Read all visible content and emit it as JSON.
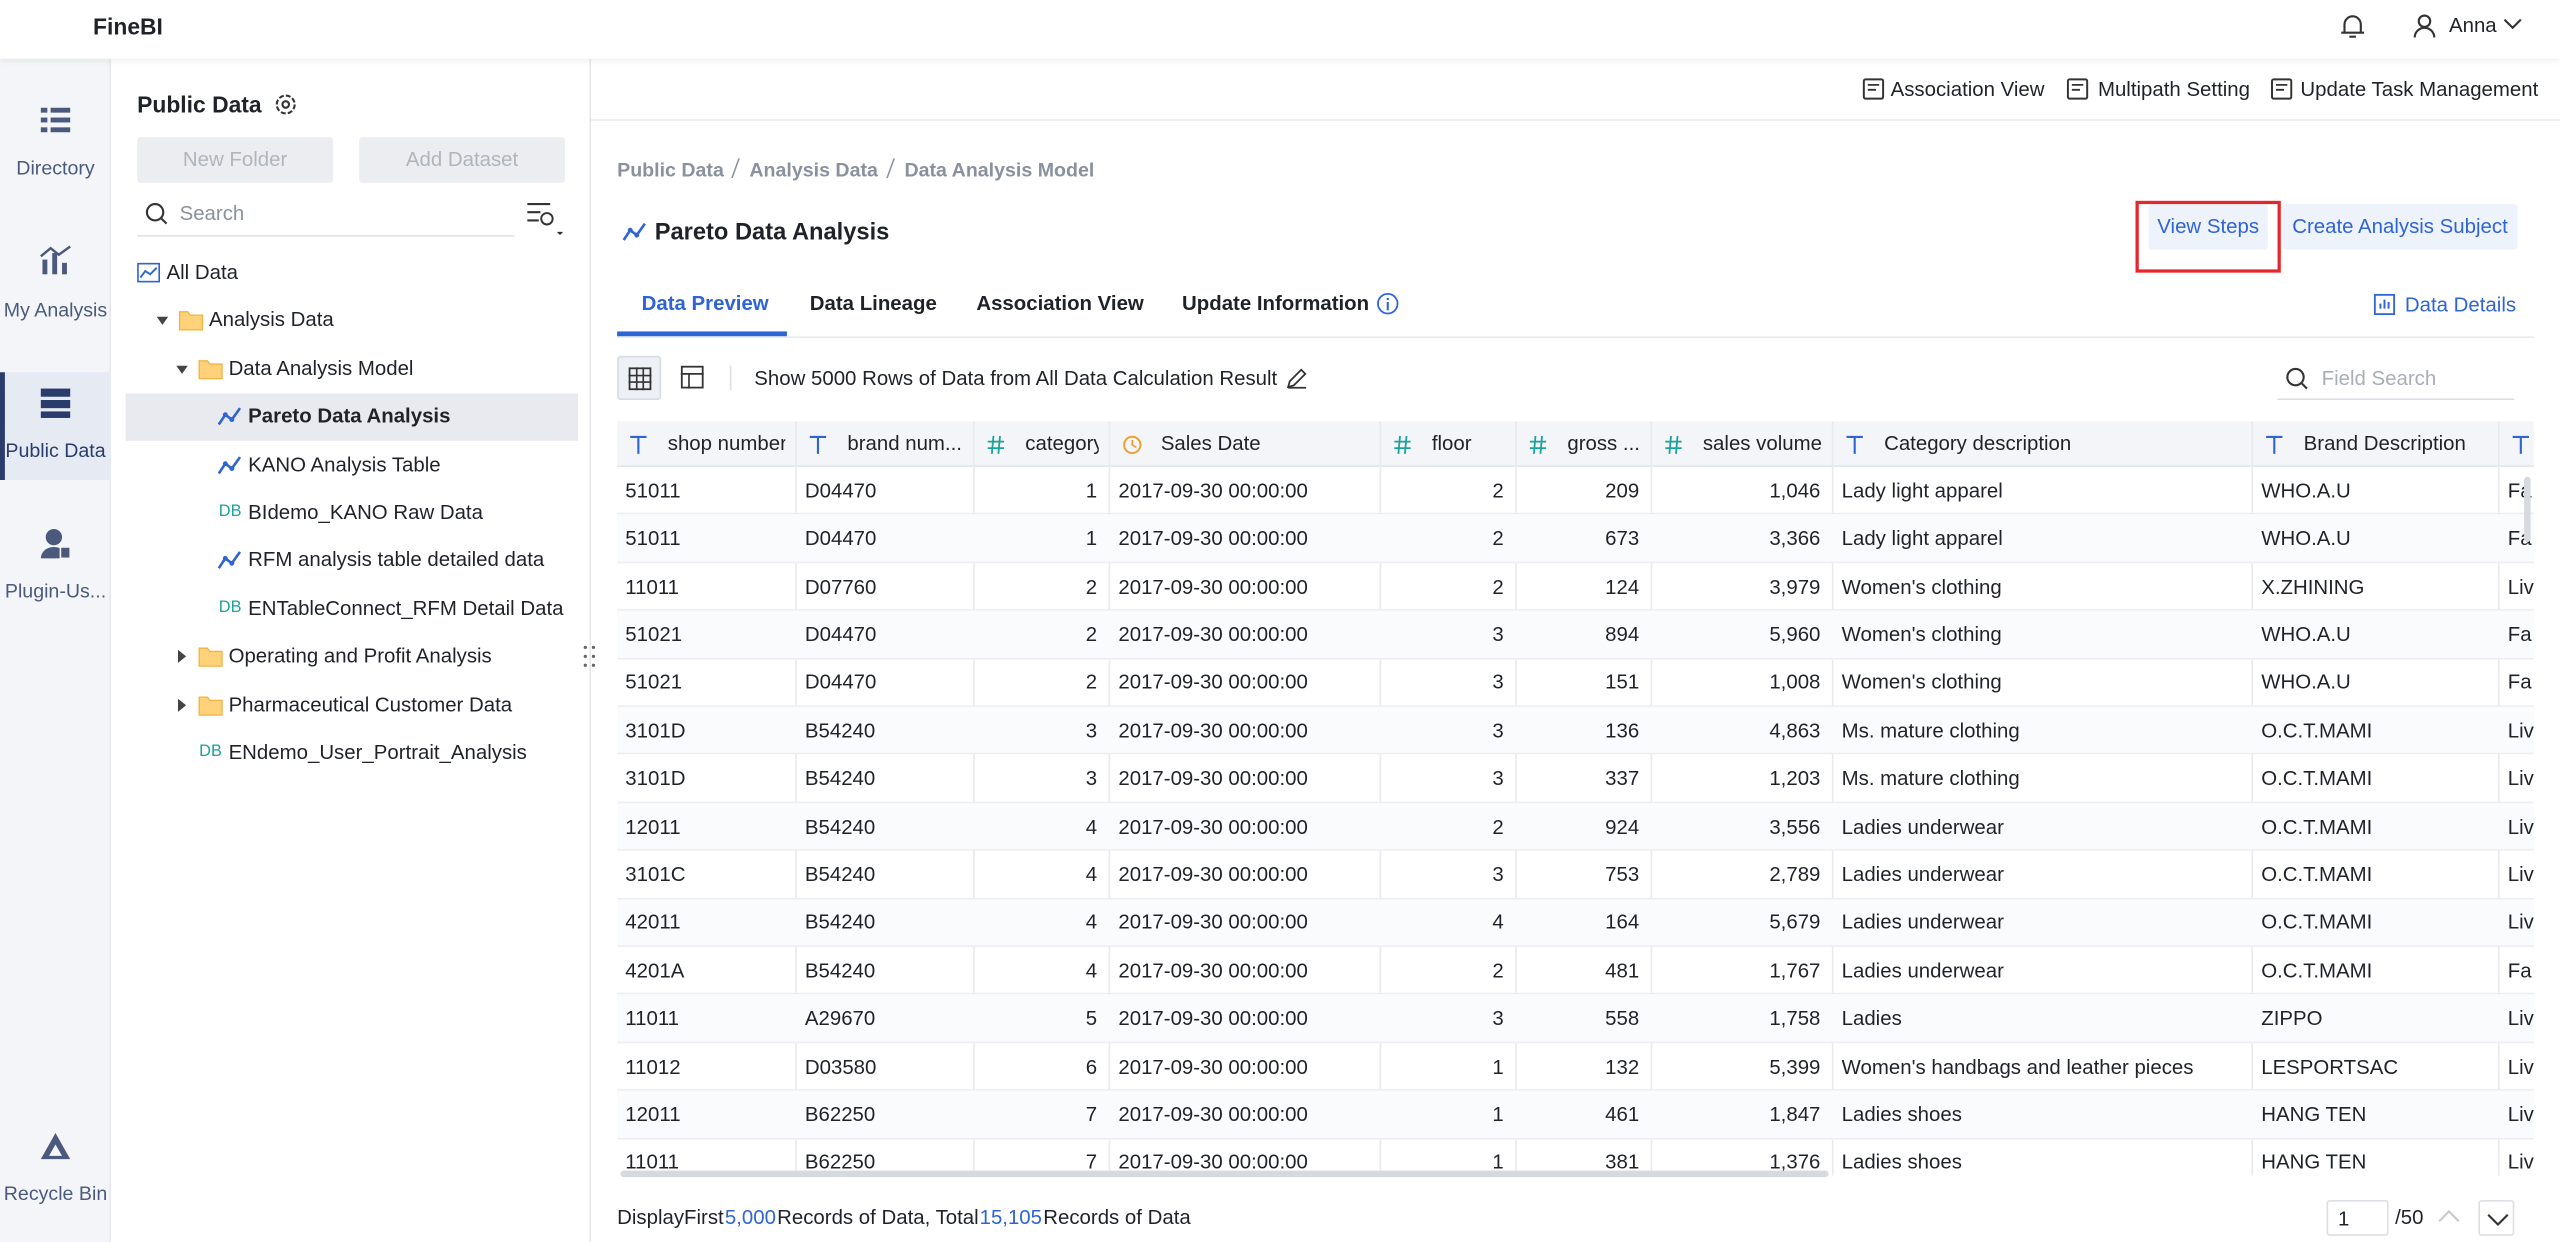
{
  "app": {
    "brand": "FineBI",
    "user": "Anna"
  },
  "nav": [
    {
      "label": "Directory"
    },
    {
      "label": "My Analysis"
    },
    {
      "label": "Public Data",
      "active": true
    },
    {
      "label": "Plugin-Us..."
    },
    {
      "label": "Recycle Bin"
    }
  ],
  "panel": {
    "title": "Public Data",
    "buttons": [
      "New Folder",
      "Add Dataset"
    ],
    "search_placeholder": "Search",
    "tree": [
      {
        "label": "All Data",
        "level": 0,
        "icon": "all"
      },
      {
        "label": "Analysis Data",
        "level": 1,
        "icon": "folder",
        "arrow": "down"
      },
      {
        "label": "Data Analysis Model",
        "level": 2,
        "icon": "folder",
        "arrow": "down"
      },
      {
        "label": "Pareto Data Analysis",
        "level": 3,
        "icon": "line",
        "selected": true
      },
      {
        "label": "KANO Analysis Table",
        "level": 3,
        "icon": "line"
      },
      {
        "label": "BIdemo_KANO Raw Data",
        "level": 3,
        "badge": "DB"
      },
      {
        "label": "RFM analysis table detailed data",
        "level": 3,
        "icon": "line"
      },
      {
        "label": "ENTableConnect_RFM Detail Data",
        "level": 3,
        "badge": "DB"
      },
      {
        "label": "Operating and Profit Analysis",
        "level": 2,
        "icon": "folder",
        "arrow": "right"
      },
      {
        "label": "Pharmaceutical Customer Data",
        "level": 2,
        "icon": "folder",
        "arrow": "right"
      },
      {
        "label": "ENdemo_User_Portrait_Analysis",
        "level": 2,
        "badge": "DB"
      }
    ]
  },
  "toolbar": [
    "Association View",
    "Multipath Setting",
    "Update Task Management"
  ],
  "breadcrumb": [
    "Public Data",
    "Analysis Data",
    "Data Analysis Model"
  ],
  "title": "Pareto Data Analysis",
  "actions": [
    {
      "label": "View Steps",
      "highlighted": true
    },
    {
      "label": "Create Analysis Subject"
    }
  ],
  "tabs": [
    {
      "label": "Data Preview",
      "active": true
    },
    {
      "label": "Data Lineage"
    },
    {
      "label": "Association View"
    },
    {
      "label": "Update Information",
      "info": true
    }
  ],
  "data_details": "Data Details",
  "row_setting": "Show 5000 Rows of Data from All Data Calculation Result",
  "field_search_placeholder": "Field Search",
  "table": {
    "columns": [
      {
        "name": "shop number",
        "kind": "text"
      },
      {
        "name": "brand num...",
        "kind": "text"
      },
      {
        "name": "category",
        "kind": "number"
      },
      {
        "name": "Sales Date",
        "kind": "date"
      },
      {
        "name": "floor",
        "kind": "number"
      },
      {
        "name": "gross ...",
        "kind": "number"
      },
      {
        "name": "sales volume",
        "kind": "number"
      },
      {
        "name": "Category description",
        "kind": "text"
      },
      {
        "name": "Brand Description",
        "kind": "text"
      },
      {
        "kind": "text"
      }
    ],
    "rows": [
      [
        "51011",
        "D04470",
        "1",
        "2017-09-30 00:00:00",
        "2",
        "209",
        "1,046",
        "Lady light apparel",
        "WHO.A.U",
        "Fa"
      ],
      [
        "51011",
        "D04470",
        "1",
        "2017-09-30 00:00:00",
        "2",
        "673",
        "3,366",
        "Lady light apparel",
        "WHO.A.U",
        "Fa"
      ],
      [
        "11011",
        "D07760",
        "2",
        "2017-09-30 00:00:00",
        "2",
        "124",
        "3,979",
        "Women's clothing",
        "X.ZHINING",
        "Liv"
      ],
      [
        "51021",
        "D04470",
        "2",
        "2017-09-30 00:00:00",
        "3",
        "894",
        "5,960",
        "Women's clothing",
        "WHO.A.U",
        "Fa"
      ],
      [
        "51021",
        "D04470",
        "2",
        "2017-09-30 00:00:00",
        "3",
        "151",
        "1,008",
        "Women's clothing",
        "WHO.A.U",
        "Fa"
      ],
      [
        "3101D",
        "B54240",
        "3",
        "2017-09-30 00:00:00",
        "3",
        "136",
        "4,863",
        "Ms. mature clothing",
        "O.C.T.MAMI",
        "Liv"
      ],
      [
        "3101D",
        "B54240",
        "3",
        "2017-09-30 00:00:00",
        "3",
        "337",
        "1,203",
        "Ms. mature clothing",
        "O.C.T.MAMI",
        "Liv"
      ],
      [
        "12011",
        "B54240",
        "4",
        "2017-09-30 00:00:00",
        "2",
        "924",
        "3,556",
        "Ladies underwear",
        "O.C.T.MAMI",
        "Liv"
      ],
      [
        "3101C",
        "B54240",
        "4",
        "2017-09-30 00:00:00",
        "3",
        "753",
        "2,789",
        "Ladies underwear",
        "O.C.T.MAMI",
        "Liv"
      ],
      [
        "42011",
        "B54240",
        "4",
        "2017-09-30 00:00:00",
        "4",
        "164",
        "5,679",
        "Ladies underwear",
        "O.C.T.MAMI",
        "Liv"
      ],
      [
        "4201A",
        "B54240",
        "4",
        "2017-09-30 00:00:00",
        "2",
        "481",
        "1,767",
        "Ladies underwear",
        "O.C.T.MAMI",
        "Fa"
      ],
      [
        "11011",
        "A29670",
        "5",
        "2017-09-30 00:00:00",
        "3",
        "558",
        "1,758",
        "Ladies",
        "ZIPPO",
        "Liv"
      ],
      [
        "11012",
        "D03580",
        "6",
        "2017-09-30 00:00:00",
        "1",
        "132",
        "5,399",
        "Women's handbags and leather pieces",
        "LESPORTSAC",
        "Liv"
      ],
      [
        "12011",
        "B62250",
        "7",
        "2017-09-30 00:00:00",
        "1",
        "461",
        "1,847",
        "Ladies shoes",
        "HANG TEN",
        "Liv"
      ],
      [
        "11011",
        "B62250",
        "7",
        "2017-09-30 00:00:00",
        "1",
        "381",
        "1,376",
        "Ladies shoes",
        "HANG TEN",
        "Liv"
      ]
    ]
  },
  "footer": {
    "parts": [
      {
        "text": "DisplayFirst"
      },
      {
        "text": "5,000",
        "highlight": true
      },
      {
        "text": "Records of Data, Total"
      },
      {
        "text": "15,105",
        "highlight": true
      },
      {
        "text": "Records of Data"
      }
    ],
    "page": "1",
    "pages": "/50"
  }
}
